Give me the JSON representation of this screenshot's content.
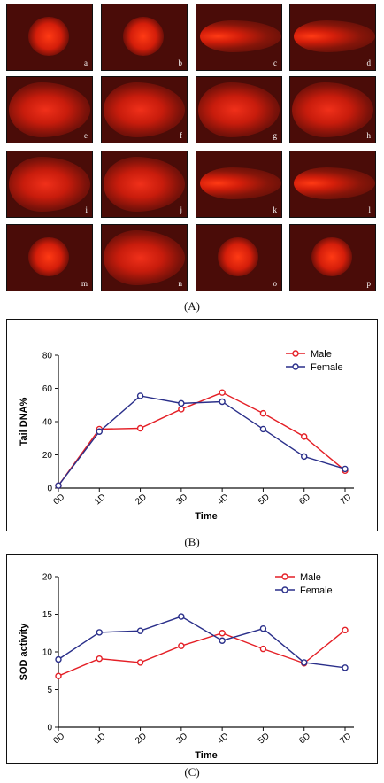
{
  "figure": {
    "cells": [
      {
        "label": "a",
        "glow": "round"
      },
      {
        "label": "b",
        "glow": "round"
      },
      {
        "label": "c",
        "glow": "comet"
      },
      {
        "label": "d",
        "glow": "comet"
      },
      {
        "label": "e",
        "glow": "diffuse"
      },
      {
        "label": "f",
        "glow": "diffuse"
      },
      {
        "label": "g",
        "glow": "diffuse"
      },
      {
        "label": "h",
        "glow": "diffuse"
      },
      {
        "label": "i",
        "glow": "diffuse"
      },
      {
        "label": "j",
        "glow": "diffuse"
      },
      {
        "label": "k",
        "glow": "comet"
      },
      {
        "label": "l",
        "glow": "comet"
      },
      {
        "label": "m",
        "glow": "round"
      },
      {
        "label": "n",
        "glow": "diffuse"
      },
      {
        "label": "o",
        "glow": "round"
      },
      {
        "label": "p",
        "glow": "round"
      }
    ],
    "caption_a": "(A)",
    "caption_b": "(B)",
    "caption_c": "(C)"
  },
  "colors": {
    "male": "#e41f26",
    "female": "#2a2f8a"
  },
  "chart_data": [
    {
      "type": "line",
      "categories": [
        "0D",
        "1D",
        "2D",
        "3D",
        "4D",
        "5D",
        "6D",
        "7D"
      ],
      "xlabel": "Time",
      "ylabel": "Tail DNA%",
      "ylim": [
        0,
        80
      ],
      "yticks": [
        0,
        20,
        40,
        60,
        80
      ],
      "legend_position": "top-right",
      "series": [
        {
          "name": "Male",
          "color": "#e41f26",
          "values": [
            1.5,
            35.5,
            36,
            47.5,
            57.5,
            45,
            31,
            10.5
          ]
        },
        {
          "name": "Female",
          "color": "#2a2f8a",
          "values": [
            1.5,
            34,
            55.5,
            51,
            52,
            35.5,
            19,
            11.5
          ]
        }
      ]
    },
    {
      "type": "line",
      "categories": [
        "0D",
        "1D",
        "2D",
        "3D",
        "4D",
        "5D",
        "6D",
        "7D"
      ],
      "xlabel": "Time",
      "ylabel": "SOD activity",
      "ylim": [
        0,
        20
      ],
      "yticks": [
        0,
        5,
        10,
        15,
        20
      ],
      "legend_position": "top-right",
      "series": [
        {
          "name": "Male",
          "color": "#e41f26",
          "values": [
            6.8,
            9.1,
            8.6,
            10.8,
            12.5,
            10.4,
            8.5,
            12.9
          ]
        },
        {
          "name": "Female",
          "color": "#2a2f8a",
          "values": [
            9.0,
            12.6,
            12.8,
            14.7,
            11.5,
            13.1,
            8.6,
            7.9
          ]
        }
      ]
    }
  ]
}
